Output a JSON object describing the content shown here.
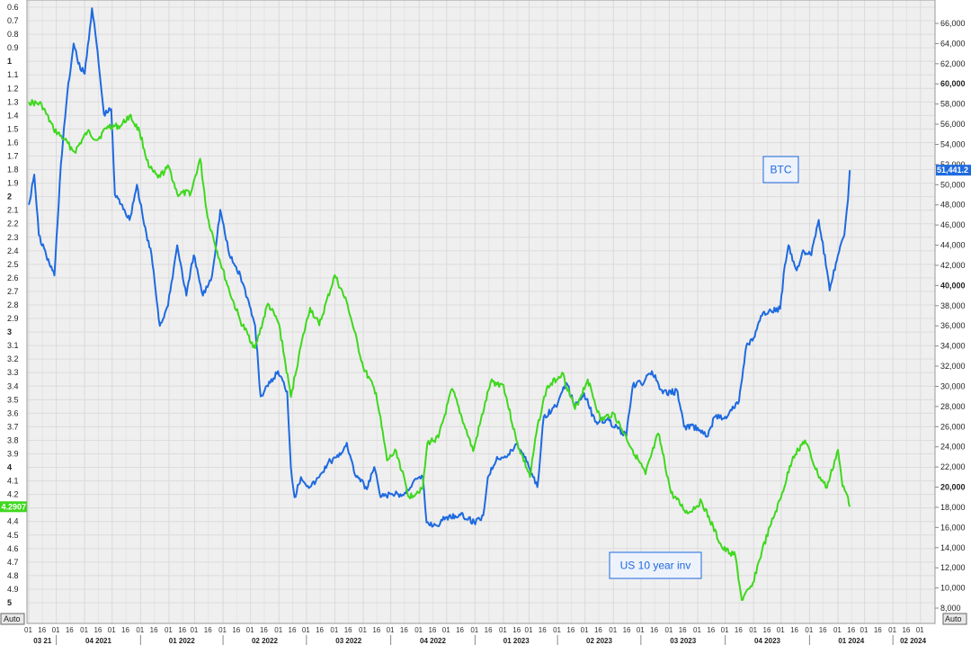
{
  "chart_data": {
    "type": "line",
    "x_axis": {
      "day_ticks": [
        "01",
        "16"
      ],
      "quarters": [
        "03 21",
        "04 2021",
        "01 2022",
        "02 2022",
        "03 2022",
        "04 2022",
        "01 2023",
        "02 2023",
        "03 2023",
        "04 2023",
        "01 2024",
        "02 2024"
      ],
      "range": [
        "2021-09-01",
        "2024-05-15"
      ]
    },
    "left_axis": {
      "scale": "inverted",
      "range": [
        0.6,
        5.0
      ],
      "ticks": [
        "0.6",
        "0.7",
        "0.8",
        "0.9",
        "1",
        "1.1",
        "1.2",
        "1.3",
        "1.4",
        "1.5",
        "1.6",
        "1.7",
        "1.8",
        "1.9",
        "2",
        "2.1",
        "2.2",
        "2.3",
        "2.4",
        "2.5",
        "2.6",
        "2.7",
        "2.8",
        "2.9",
        "3",
        "3.1",
        "3.2",
        "3.3",
        "3.4",
        "3.5",
        "3.6",
        "3.7",
        "3.8",
        "3.9",
        "4",
        "4.1",
        "4.2",
        "4.3",
        "4.4",
        "4.5",
        "4.6",
        "4.7",
        "4.8",
        "4.9",
        "5"
      ],
      "bold_ticks": [
        "1",
        "2",
        "3",
        "4",
        "5"
      ]
    },
    "right_axis": {
      "range": [
        8000,
        66000
      ],
      "ticks": [
        "8,000",
        "10,000",
        "12,000",
        "14,000",
        "16,000",
        "18,000",
        "20,000",
        "22,000",
        "24,000",
        "26,000",
        "28,000",
        "30,000",
        "32,000",
        "34,000",
        "36,000",
        "38,000",
        "40,000",
        "42,000",
        "44,000",
        "46,000",
        "48,000",
        "50,000",
        "52,000",
        "54,000",
        "56,000",
        "58,000",
        "60,000",
        "62,000",
        "64,000",
        "66,000"
      ],
      "bold_ticks": [
        "20,000",
        "40,000",
        "60,000"
      ]
    },
    "grid": true,
    "series": [
      {
        "name": "BTC",
        "axis": "right",
        "color": "#1e6ae0",
        "points": [
          [
            "2021-09-01",
            48000
          ],
          [
            "2021-09-07",
            51000
          ],
          [
            "2021-09-12",
            45000
          ],
          [
            "2021-09-20",
            43000
          ],
          [
            "2021-09-29",
            41000
          ],
          [
            "2021-10-06",
            52000
          ],
          [
            "2021-10-13",
            59000
          ],
          [
            "2021-10-20",
            64000
          ],
          [
            "2021-10-25",
            62000
          ],
          [
            "2021-11-01",
            61000
          ],
          [
            "2021-11-09",
            67500
          ],
          [
            "2021-11-14",
            64000
          ],
          [
            "2021-11-22",
            57000
          ],
          [
            "2021-11-30",
            57500
          ],
          [
            "2021-12-04",
            49000
          ],
          [
            "2021-12-12",
            48000
          ],
          [
            "2021-12-20",
            46500
          ],
          [
            "2021-12-28",
            50000
          ],
          [
            "2022-01-05",
            46000
          ],
          [
            "2022-01-13",
            43000
          ],
          [
            "2022-01-22",
            36000
          ],
          [
            "2022-01-31",
            38000
          ],
          [
            "2022-02-10",
            44000
          ],
          [
            "2022-02-20",
            39000
          ],
          [
            "2022-02-28",
            43000
          ],
          [
            "2022-03-10",
            39000
          ],
          [
            "2022-03-20",
            41000
          ],
          [
            "2022-03-29",
            47500
          ],
          [
            "2022-04-08",
            43000
          ],
          [
            "2022-04-20",
            41000
          ],
          [
            "2022-04-30",
            38000
          ],
          [
            "2022-05-06",
            36000
          ],
          [
            "2022-05-12",
            29000
          ],
          [
            "2022-05-20",
            30000
          ],
          [
            "2022-05-31",
            31500
          ],
          [
            "2022-06-10",
            29500
          ],
          [
            "2022-06-14",
            22000
          ],
          [
            "2022-06-18",
            19000
          ],
          [
            "2022-06-25",
            21000
          ],
          [
            "2022-07-05",
            20000
          ],
          [
            "2022-07-15",
            21000
          ],
          [
            "2022-07-25",
            22500
          ],
          [
            "2022-08-05",
            23000
          ],
          [
            "2022-08-14",
            24400
          ],
          [
            "2022-08-22",
            21500
          ],
          [
            "2022-09-05",
            19800
          ],
          [
            "2022-09-13",
            22000
          ],
          [
            "2022-09-20",
            19000
          ],
          [
            "2022-10-01",
            19300
          ],
          [
            "2022-10-15",
            19200
          ],
          [
            "2022-10-26",
            20600
          ],
          [
            "2022-11-05",
            21000
          ],
          [
            "2022-11-09",
            16500
          ],
          [
            "2022-11-20",
            16200
          ],
          [
            "2022-11-30",
            17000
          ],
          [
            "2022-12-15",
            17300
          ],
          [
            "2022-12-31",
            16500
          ],
          [
            "2023-01-10",
            17200
          ],
          [
            "2023-01-15",
            21000
          ],
          [
            "2023-01-25",
            23000
          ],
          [
            "2023-02-05",
            23000
          ],
          [
            "2023-02-15",
            24300
          ],
          [
            "2023-02-25",
            23000
          ],
          [
            "2023-03-10",
            20000
          ],
          [
            "2023-03-17",
            27000
          ],
          [
            "2023-03-30",
            28000
          ],
          [
            "2023-04-11",
            30300
          ],
          [
            "2023-04-20",
            28000
          ],
          [
            "2023-04-30",
            29300
          ],
          [
            "2023-05-12",
            26500
          ],
          [
            "2023-05-25",
            26700
          ],
          [
            "2023-06-06",
            25800
          ],
          [
            "2023-06-15",
            25000
          ],
          [
            "2023-06-22",
            30000
          ],
          [
            "2023-07-05",
            30500
          ],
          [
            "2023-07-13",
            31500
          ],
          [
            "2023-07-25",
            29300
          ],
          [
            "2023-08-10",
            29500
          ],
          [
            "2023-08-17",
            26000
          ],
          [
            "2023-09-01",
            25900
          ],
          [
            "2023-09-11",
            25000
          ],
          [
            "2023-09-20",
            27000
          ],
          [
            "2023-10-01",
            27000
          ],
          [
            "2023-10-16",
            28500
          ],
          [
            "2023-10-24",
            34000
          ],
          [
            "2023-11-01",
            34800
          ],
          [
            "2023-11-10",
            37000
          ],
          [
            "2023-11-20",
            37500
          ],
          [
            "2023-11-30",
            37700
          ],
          [
            "2023-12-05",
            42000
          ],
          [
            "2023-12-09",
            44000
          ],
          [
            "2023-12-18",
            41500
          ],
          [
            "2023-12-25",
            43500
          ],
          [
            "2024-01-03",
            43000
          ],
          [
            "2024-01-11",
            46500
          ],
          [
            "2024-01-20",
            41500
          ],
          [
            "2024-01-23",
            39500
          ],
          [
            "2024-02-01",
            43000
          ],
          [
            "2024-02-08",
            45000
          ],
          [
            "2024-02-12",
            48500
          ],
          [
            "2024-02-14",
            51441
          ]
        ]
      },
      {
        "name": "US 10 year inv",
        "axis": "left",
        "color": "#3fd81e",
        "points": [
          [
            "2021-09-01",
            1.3
          ],
          [
            "2021-09-15",
            1.32
          ],
          [
            "2021-09-28",
            1.5
          ],
          [
            "2021-10-10",
            1.58
          ],
          [
            "2021-10-21",
            1.67
          ],
          [
            "2021-11-04",
            1.52
          ],
          [
            "2021-11-15",
            1.58
          ],
          [
            "2021-11-26",
            1.48
          ],
          [
            "2021-12-10",
            1.48
          ],
          [
            "2021-12-20",
            1.4
          ],
          [
            "2021-12-31",
            1.52
          ],
          [
            "2022-01-10",
            1.78
          ],
          [
            "2022-01-20",
            1.86
          ],
          [
            "2022-02-01",
            1.78
          ],
          [
            "2022-02-10",
            1.98
          ],
          [
            "2022-02-25",
            1.97
          ],
          [
            "2022-03-07",
            1.72
          ],
          [
            "2022-03-15",
            2.15
          ],
          [
            "2022-03-28",
            2.46
          ],
          [
            "2022-04-08",
            2.7
          ],
          [
            "2022-04-20",
            2.92
          ],
          [
            "2022-05-06",
            3.12
          ],
          [
            "2022-05-20",
            2.79
          ],
          [
            "2022-06-01",
            2.94
          ],
          [
            "2022-06-14",
            3.48
          ],
          [
            "2022-06-25",
            3.1
          ],
          [
            "2022-07-05",
            2.82
          ],
          [
            "2022-07-15",
            2.95
          ],
          [
            "2022-08-01",
            2.58
          ],
          [
            "2022-08-15",
            2.8
          ],
          [
            "2022-09-01",
            3.26
          ],
          [
            "2022-09-15",
            3.45
          ],
          [
            "2022-09-27",
            3.95
          ],
          [
            "2022-10-07",
            3.88
          ],
          [
            "2022-10-21",
            4.22
          ],
          [
            "2022-11-05",
            4.15
          ],
          [
            "2022-11-10",
            3.82
          ],
          [
            "2022-11-22",
            3.78
          ],
          [
            "2022-12-07",
            3.42
          ],
          [
            "2022-12-20",
            3.68
          ],
          [
            "2022-12-30",
            3.88
          ],
          [
            "2023-01-18",
            3.37
          ],
          [
            "2023-02-01",
            3.39
          ],
          [
            "2023-02-15",
            3.8
          ],
          [
            "2023-03-02",
            4.07
          ],
          [
            "2023-03-10",
            3.7
          ],
          [
            "2023-03-20",
            3.42
          ],
          [
            "2023-04-06",
            3.3
          ],
          [
            "2023-04-20",
            3.57
          ],
          [
            "2023-05-04",
            3.35
          ],
          [
            "2023-05-18",
            3.65
          ],
          [
            "2023-06-01",
            3.6
          ],
          [
            "2023-06-15",
            3.78
          ],
          [
            "2023-07-06",
            4.05
          ],
          [
            "2023-07-20",
            3.75
          ],
          [
            "2023-08-03",
            4.19
          ],
          [
            "2023-08-21",
            4.34
          ],
          [
            "2023-09-05",
            4.25
          ],
          [
            "2023-09-28",
            4.6
          ],
          [
            "2023-10-12",
            4.65
          ],
          [
            "2023-10-19",
            4.98
          ],
          [
            "2023-10-30",
            4.88
          ],
          [
            "2023-11-10",
            4.62
          ],
          [
            "2023-11-20",
            4.42
          ],
          [
            "2023-12-01",
            4.22
          ],
          [
            "2023-12-14",
            3.92
          ],
          [
            "2023-12-27",
            3.8
          ],
          [
            "2024-01-10",
            4.05
          ],
          [
            "2024-01-20",
            4.15
          ],
          [
            "2024-02-01",
            3.87
          ],
          [
            "2024-02-06",
            4.14
          ],
          [
            "2024-02-12",
            4.22
          ],
          [
            "2024-02-14",
            4.2907
          ]
        ]
      }
    ],
    "annotations": [
      {
        "text": "BTC",
        "color": "#1e6ae0"
      },
      {
        "text": "US 10 year inv",
        "color": "#1e6ae0"
      }
    ],
    "last_values": [
      {
        "text": "51,441.2",
        "axis": "right",
        "value": 51441.2,
        "color": "#1e6ae0"
      },
      {
        "text": "4.2907",
        "axis": "left",
        "value": 4.2907,
        "color": "#3fd81e"
      }
    ]
  },
  "ui": {
    "auto_label": "Auto"
  }
}
